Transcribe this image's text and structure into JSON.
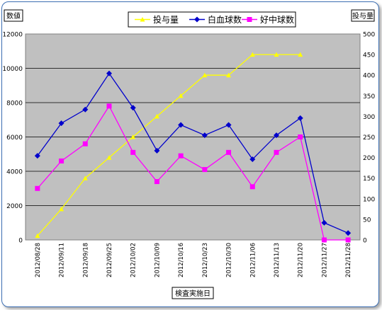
{
  "chart_data": {
    "type": "line",
    "categories": [
      "2012/08/28",
      "2012/09/11",
      "2012/09/18",
      "2012/09/25",
      "2012/10/02",
      "2012/10/09",
      "2012/10/16",
      "2012/10/23",
      "2012/10/30",
      "2012/11/06",
      "2012/11/13",
      "2012/11/20",
      "2012/11/27",
      "2012/11/28"
    ],
    "xlabel": "検査実施日",
    "ylabel": "数値",
    "y2label": "投与量",
    "ylim": [
      0,
      12000
    ],
    "y2lim": [
      0,
      500
    ],
    "yticks": [
      "0",
      "2000",
      "4000",
      "6000",
      "8000",
      "10000",
      "12000"
    ],
    "y2ticks": [
      "0",
      "50",
      "100",
      "150",
      "200",
      "250",
      "300",
      "350",
      "400",
      "450",
      "500"
    ],
    "grid": true,
    "legend_position": "top",
    "series": [
      {
        "name": "投与量",
        "axis": "right",
        "color": "#ffff00",
        "marker": "triangle",
        "values": [
          10,
          75,
          150,
          200,
          250,
          300,
          350,
          400,
          400,
          450,
          450,
          450,
          null,
          null
        ]
      },
      {
        "name": "白血球数",
        "axis": "left",
        "color": "#0000cc",
        "marker": "diamond",
        "values": [
          4900,
          6800,
          7600,
          9700,
          7700,
          5200,
          6700,
          6100,
          6700,
          4700,
          6100,
          7100,
          1000,
          400
        ]
      },
      {
        "name": "好中球数",
        "axis": "left",
        "color": "#ff00ff",
        "marker": "square",
        "values": [
          3000,
          4600,
          5600,
          7800,
          5100,
          3400,
          4900,
          4100,
          5100,
          3100,
          5100,
          6000,
          0,
          0
        ]
      }
    ]
  }
}
